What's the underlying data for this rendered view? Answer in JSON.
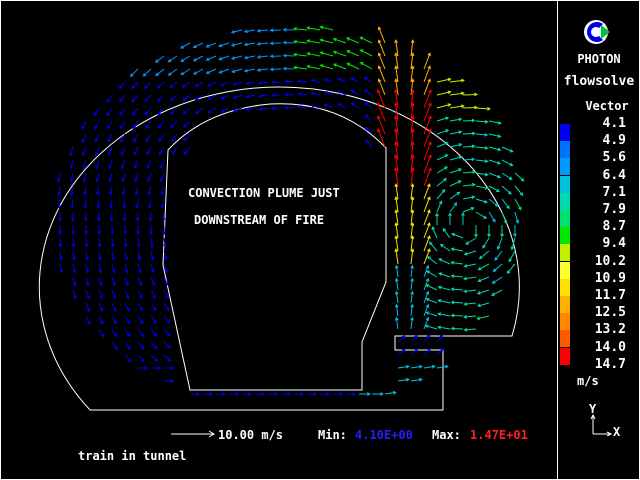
{
  "annotation": [
    "CONVECTION PLUME JUST",
    "DOWNSTREAM OF FIRE"
  ],
  "caption": "train in tunnel",
  "scale_vector": {
    "value_label": "10.00 m/s"
  },
  "min": {
    "label": "Min:",
    "value": "4.10E+00",
    "color": "#2020ff"
  },
  "max": {
    "label": "Max:",
    "value": "1.47E+01",
    "color": "#ff2020"
  },
  "sidebar": {
    "app": "PHOTON",
    "case": "flowsolve",
    "legend_title": "Vector",
    "units": "m/s",
    "axis_y": "Y",
    "axis_x": "X"
  },
  "chart_data": {
    "type": "vector",
    "legend_values": [
      "4.1",
      "4.9",
      "5.6",
      "6.4",
      "7.1",
      "7.9",
      "8.7",
      "9.4",
      "10.2",
      "10.9",
      "11.7",
      "12.5",
      "13.2",
      "14.0",
      "14.7"
    ],
    "legend_colors": [
      "#0000f0",
      "#0070ff",
      "#0098ff",
      "#00c0e0",
      "#00d8b0",
      "#00e070",
      "#00e800",
      "#c0f000",
      "#ffff30",
      "#ffe000",
      "#ffb000",
      "#ff8800",
      "#ff5a00",
      "#ff0000"
    ],
    "min": 4.1,
    "max": 14.7,
    "units": "m/s"
  }
}
